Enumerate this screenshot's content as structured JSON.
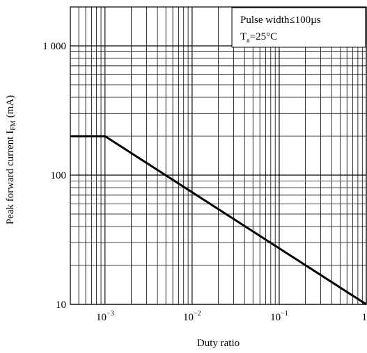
{
  "chart_data": {
    "type": "line",
    "xlabel": "Duty ratio",
    "ylabel_main": "Peak forward current I",
    "ylabel_sub": "FM",
    "ylabel_unit": "(mA)",
    "x_scale": "log",
    "y_scale": "log",
    "xlim": [
      0.0004,
      1
    ],
    "ylim": [
      10,
      2000
    ],
    "grid": true,
    "x_ticks": [
      {
        "value": 0.001,
        "base": "10",
        "exp": "−3"
      },
      {
        "value": 0.01,
        "base": "10",
        "exp": "−2"
      },
      {
        "value": 0.1,
        "base": "10",
        "exp": "−1"
      },
      {
        "value": 1,
        "label": "1"
      }
    ],
    "y_ticks": [
      {
        "value": 10,
        "label": "10"
      },
      {
        "value": 100,
        "label": "100"
      },
      {
        "value": 1000,
        "label": "1 000"
      }
    ],
    "series": [
      {
        "x": [
          0.0004,
          0.001,
          1
        ],
        "y": [
          200,
          200,
          10
        ]
      }
    ],
    "annotation": {
      "line1": "Pulse width≤100µs",
      "line2_main": "T",
      "line2_sub": "a",
      "line2_rest": "=25°C"
    }
  }
}
